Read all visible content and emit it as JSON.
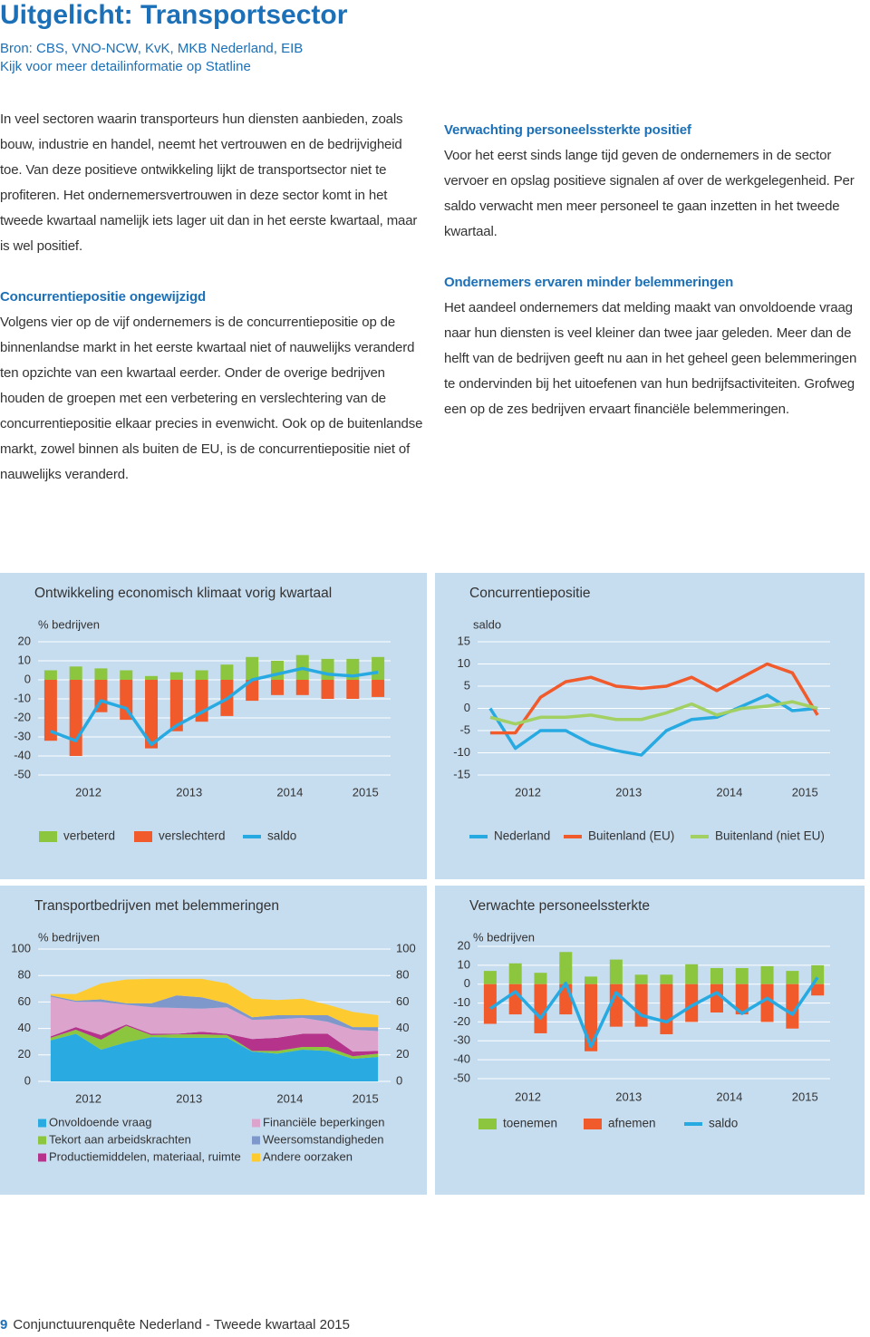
{
  "header": {
    "title": "Uitgelicht: Transportsector",
    "source": "Bron: CBS, VNO-NCW, KvK, MKB Nederland, EIB",
    "statline": "Kijk voor meer detailinformatie op Statline"
  },
  "left_column": {
    "intro": "In veel sectoren waarin transporteurs hun diensten aanbieden, zoals bouw, industrie en handel, neemt het vertrouwen en de bedrijvigheid toe. Van deze positieve ontwikkeling lijkt de transportsector niet te profiteren. Het ondernemersvertrouwen in deze sector komt in het tweede kwartaal namelijk iets lager uit dan in het eerste kwartaal, maar is wel positief.",
    "heading": "Concurrentiepositie ongewijzigd",
    "text": "Volgens vier op de vijf ondernemers is de concurrentiepositie op de binnenlandse markt in het eerste kwartaal niet of nauwelijks veranderd ten opzichte van een kwartaal eerder. Onder de overige bedrijven houden de groepen met een verbetering en verslechtering van de concurrentiepositie elkaar precies in evenwicht. Ook op de buitenlandse markt, zowel binnen als buiten de EU, is de concurrentiepositie niet of nauwelijks veranderd."
  },
  "right_column": {
    "sections": [
      {
        "heading": "Verwachting personeelssterkte positief",
        "text": "Voor het eerst sinds lange tijd geven de ondernemers in de sector vervoer en opslag positieve signalen af over de werkgelegenheid. Per saldo verwacht men meer personeel te gaan inzetten in het tweede kwartaal."
      },
      {
        "heading": "Ondernemers ervaren minder belemmeringen",
        "text": "Het aandeel ondernemers dat melding maakt van onvoldoende vraag naar hun diensten is veel kleiner dan twee jaar geleden. Meer dan de helft van de bedrijven geeft nu aan in het geheel geen belemmeringen te ondervinden bij het uitoefenen van hun bedrijfsactiviteiten. Grofweg een op de zes bedrijven ervaart financiële belemmeringen."
      }
    ]
  },
  "chart_data": [
    {
      "type": "bar",
      "title": "Ontwikkeling economisch klimaat vorig kwartaal",
      "ylabel": "% bedrijven",
      "x": [
        2012.125,
        2012.375,
        2012.625,
        2012.875,
        2013.125,
        2013.375,
        2013.625,
        2013.875,
        2014.125,
        2014.375,
        2014.625,
        2014.875,
        2015.125,
        2015.375
      ],
      "xlim": [
        2012,
        2015.5
      ],
      "xticks": [
        {
          "value": 2012.5,
          "label": "2012"
        },
        {
          "value": 2013.5,
          "label": "2013"
        },
        {
          "value": 2014.5,
          "label": "2014"
        },
        {
          "value": 2015.25,
          "label": "2015"
        }
      ],
      "ylim": [
        -50,
        20
      ],
      "yticks": [
        20,
        10,
        0,
        -10,
        -20,
        -30,
        -40,
        -50
      ],
      "grid": true,
      "series": [
        {
          "name": "verbeterd",
          "color": "#8cc63f",
          "values": [
            5,
            7,
            6,
            5,
            2,
            4,
            5,
            8,
            12,
            10,
            13,
            11,
            11,
            12
          ]
        },
        {
          "name": "verslechterd",
          "color": "#f15a2b",
          "values": [
            -32,
            -40,
            -17,
            -21,
            -36,
            -27,
            -22,
            -19,
            -11,
            -8,
            -8,
            -10,
            -10,
            -9
          ]
        },
        {
          "name": "saldo",
          "type": "line",
          "color": "#27aae1",
          "values": [
            -27,
            -32,
            -11,
            -15,
            -34,
            -24,
            -17,
            -10,
            0,
            3,
            6,
            3,
            2,
            4
          ]
        }
      ]
    },
    {
      "type": "line",
      "title": "Concurrentiepositie",
      "ylabel": "saldo",
      "x": [
        2012.125,
        2012.375,
        2012.625,
        2012.875,
        2013.125,
        2013.375,
        2013.625,
        2013.875,
        2014.125,
        2014.375,
        2014.625,
        2014.875,
        2015.125,
        2015.375
      ],
      "xlim": [
        2012,
        2015.5
      ],
      "xticks": [
        {
          "value": 2012.5,
          "label": "2012"
        },
        {
          "value": 2013.5,
          "label": "2013"
        },
        {
          "value": 2014.5,
          "label": "2014"
        },
        {
          "value": 2015.25,
          "label": "2015"
        }
      ],
      "ylim": [
        -15,
        15
      ],
      "yticks": [
        15,
        10,
        5,
        0,
        -5,
        -10,
        -15
      ],
      "grid": true,
      "series": [
        {
          "name": "Nederland",
          "color": "#27aae1",
          "values": [
            0,
            -9,
            -5,
            -5,
            -8,
            -9.5,
            -10.5,
            -5,
            -2.5,
            -2,
            0.5,
            3,
            -0.5,
            0
          ]
        },
        {
          "name": "Buitenland (EU)",
          "color": "#f15a2b",
          "values": [
            -5.5,
            -5.5,
            2.5,
            6,
            7,
            5,
            4.5,
            5,
            7,
            4,
            7,
            10,
            8,
            -1.5
          ]
        },
        {
          "name": "Buitenland (niet EU)",
          "color": "#a3d063",
          "values": [
            -2,
            -3.5,
            -2,
            -2,
            -1.5,
            -2.5,
            -2.5,
            -1,
            1,
            -1.5,
            0,
            0.5,
            1.5,
            0
          ]
        }
      ]
    },
    {
      "type": "area",
      "stacked": true,
      "title": "Transportbedrijven met belemmeringen",
      "ylabel": "% bedrijven",
      "x": [
        2012.125,
        2012.375,
        2012.625,
        2012.875,
        2013.125,
        2013.375,
        2013.625,
        2013.875,
        2014.125,
        2014.375,
        2014.625,
        2014.875,
        2015.125,
        2015.375
      ],
      "xlim": [
        2012,
        2015.5
      ],
      "xticks": [
        {
          "value": 2012.5,
          "label": "2012"
        },
        {
          "value": 2013.5,
          "label": "2013"
        },
        {
          "value": 2014.5,
          "label": "2014"
        },
        {
          "value": 2015.25,
          "label": "2015"
        }
      ],
      "ylim": [
        0,
        100
      ],
      "yticks": [
        100,
        80,
        60,
        40,
        20,
        0
      ],
      "y2lim": [
        0,
        100
      ],
      "y2ticks": [
        100,
        80,
        60,
        40,
        20,
        0
      ],
      "grid": true,
      "series": [
        {
          "name": "Onvoldoende vraag",
          "color": "#29abe2",
          "values": [
            31,
            36,
            24,
            29.5,
            33.5,
            33,
            33,
            33,
            22.5,
            21,
            24,
            23,
            17,
            18.5
          ]
        },
        {
          "name": "Tekort aan arbeidskrachten",
          "color": "#8cc63f",
          "values": [
            2,
            3,
            7.5,
            12.5,
            1.5,
            2.5,
            2.5,
            2,
            0.5,
            2,
            2,
            3,
            2,
            2.5
          ]
        },
        {
          "name": "Productiemiddelen, materiaal, ruimte",
          "color": "#b5338a",
          "values": [
            1,
            2,
            3.5,
            1,
            1,
            0.5,
            2,
            1,
            9,
            10,
            10,
            10,
            3.5,
            2
          ]
        },
        {
          "name": "Financiële beperkingen",
          "color": "#dca3cc",
          "values": [
            30,
            19,
            25,
            15,
            20,
            19.5,
            17.5,
            20,
            14.5,
            14,
            12,
            9,
            16.5,
            15
          ]
        },
        {
          "name": "Weersomstandigheden",
          "color": "#7f98cb",
          "values": [
            1,
            1,
            2,
            1,
            3,
            9.5,
            8.5,
            3,
            2,
            3,
            2,
            5,
            2,
            3
          ]
        },
        {
          "name": "Andere oorzaken",
          "color": "#fdcb2f",
          "values": [
            1,
            5,
            12,
            18,
            18.5,
            12.5,
            14,
            15,
            14,
            11.5,
            12.5,
            8,
            11.5,
            9
          ]
        }
      ]
    },
    {
      "type": "bar",
      "title": "Verwachte personeelssterkte",
      "ylabel": "% bedrijven",
      "x": [
        2012.125,
        2012.375,
        2012.625,
        2012.875,
        2013.125,
        2013.375,
        2013.625,
        2013.875,
        2014.125,
        2014.375,
        2014.625,
        2014.875,
        2015.125,
        2015.375
      ],
      "xlim": [
        2012,
        2015.5
      ],
      "xticks": [
        {
          "value": 2012.5,
          "label": "2012"
        },
        {
          "value": 2013.5,
          "label": "2013"
        },
        {
          "value": 2014.5,
          "label": "2014"
        },
        {
          "value": 2015.25,
          "label": "2015"
        }
      ],
      "ylim": [
        -50,
        20
      ],
      "yticks": [
        20,
        10,
        0,
        -10,
        -20,
        -30,
        -40,
        -50
      ],
      "grid": true,
      "series": [
        {
          "name": "toenemen",
          "color": "#8cc63f",
          "values": [
            7,
            11,
            6,
            17,
            4,
            13,
            5,
            5,
            10.5,
            8.5,
            8.5,
            9.5,
            7,
            10
          ]
        },
        {
          "name": "afnemen",
          "color": "#f15a2b",
          "values": [
            -21,
            -16,
            -26,
            -16,
            -35.5,
            -22.5,
            -22.5,
            -26.5,
            -20,
            -15,
            -16,
            -20,
            -23.5,
            -6
          ]
        },
        {
          "name": "saldo",
          "type": "line",
          "color": "#27aae1",
          "values": [
            -13,
            -4,
            -18,
            0.5,
            -33,
            -4.5,
            -16.5,
            -20,
            -11.5,
            -4.5,
            -15.5,
            -7.5,
            -16,
            3.5
          ]
        }
      ]
    }
  ],
  "footer": {
    "page": "9",
    "text": "Conjunctuurenquête Nederland - Tweede kwartaal 2015"
  }
}
